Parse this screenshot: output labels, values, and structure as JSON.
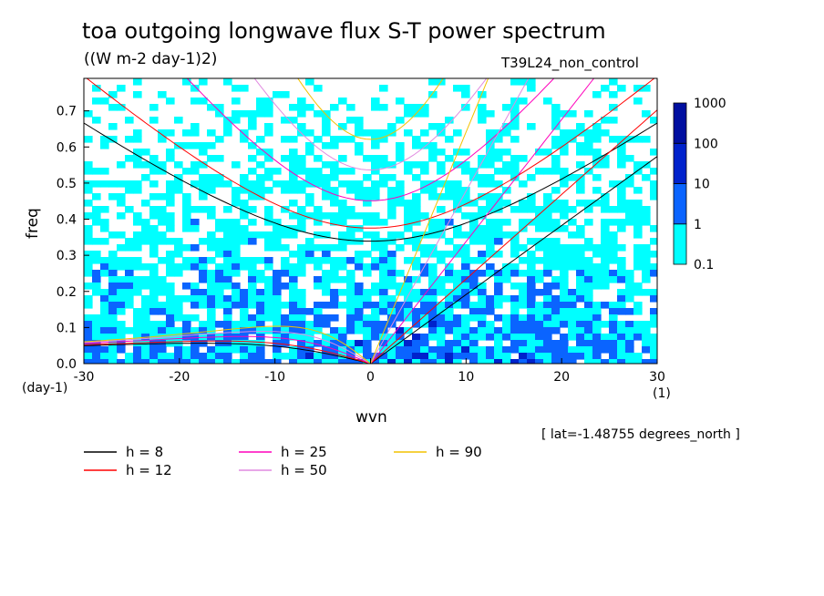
{
  "title": "toa outgoing longwave flux S-T power spectrum",
  "units_label": "((W m-2 day-1)2)",
  "run_label": "T39L24_non_control",
  "lat_label": "[ lat=-1.48755 degrees_north ]",
  "chart_data": {
    "type": "heatmap",
    "xlabel": "wvn",
    "ylabel": "freq",
    "x_unit": "(1)",
    "y_unit": "(day-1)",
    "xlim": [
      -30,
      30
    ],
    "ylim": [
      0,
      0.79
    ],
    "x_ticks": [
      -30,
      -20,
      -10,
      0,
      10,
      20,
      30
    ],
    "x_tick_labels": [
      "-30",
      "-20",
      "-10",
      "0",
      "10",
      "20",
      "30"
    ],
    "y_ticks": [
      0.0,
      0.1,
      0.2,
      0.3,
      0.4,
      0.5,
      0.6,
      0.7
    ],
    "y_tick_labels": [
      "0.0",
      "0.1",
      "0.2",
      "0.3",
      "0.4",
      "0.5",
      "0.6",
      "0.7"
    ],
    "grid": false,
    "colorbar": {
      "levels": [
        0.1,
        1,
        10,
        100,
        1000
      ],
      "labels": [
        "0.1",
        "1",
        "10",
        "100",
        "1000"
      ],
      "colors": [
        "#00ffff",
        "#0a64ff",
        "#0022cc",
        "#000fa0",
        "#3a0aa8"
      ],
      "scale": "log"
    },
    "contour_regions_approx": [
      {
        "level": 0.1,
        "x": [
          -30,
          30
        ],
        "y": [
          0.0,
          0.79
        ],
        "note": "patchy cyan coverage, sparse above 0.5"
      },
      {
        "level": 1,
        "x": [
          -30,
          30
        ],
        "y": [
          0.0,
          0.35
        ],
        "note": "scattered blue patches, dense below 0.3"
      },
      {
        "level": 10,
        "x": [
          -18,
          20
        ],
        "y": [
          0.0,
          0.2
        ],
        "note": "dark blue patches concentrated near 0 to 10"
      }
    ],
    "series": [
      {
        "name": "h =  8",
        "color": "#000000",
        "equivalent_depth": 8
      },
      {
        "name": "h = 12",
        "color": "#ff0000",
        "equivalent_depth": 12
      },
      {
        "name": "h = 25",
        "color": "#ff00bb",
        "equivalent_depth": 25
      },
      {
        "name": "h = 50",
        "color": "#e08ae0",
        "equivalent_depth": 50
      },
      {
        "name": "h = 90",
        "color": "#f2c200",
        "equivalent_depth": 90
      }
    ],
    "legend_position": "bottom-left"
  }
}
